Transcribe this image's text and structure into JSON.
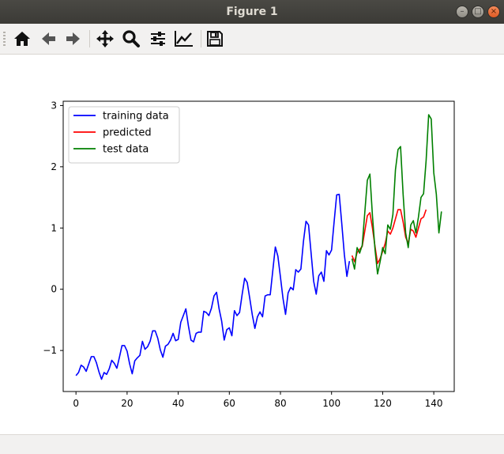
{
  "window": {
    "title": "Figure 1"
  },
  "toolbar": {
    "buttons": [
      {
        "name": "home-icon"
      },
      {
        "name": "back-icon"
      },
      {
        "name": "forward-icon"
      },
      {
        "name": "pan-icon"
      },
      {
        "name": "zoom-icon"
      },
      {
        "name": "subplots-icon"
      },
      {
        "name": "axes-edit-icon"
      },
      {
        "name": "save-icon"
      }
    ]
  },
  "chart_data": {
    "type": "line",
    "title": "",
    "xlabel": "",
    "ylabel": "",
    "xlim": [
      -5,
      148
    ],
    "ylim": [
      -1.67,
      3.07
    ],
    "xticks": [
      0,
      20,
      40,
      60,
      80,
      100,
      120,
      140
    ],
    "yticks": [
      -1,
      0,
      1,
      2,
      3
    ],
    "xtick_labels": [
      "0",
      "20",
      "40",
      "60",
      "80",
      "100",
      "120",
      "140"
    ],
    "ytick_labels": [
      "−1",
      "0",
      "1",
      "2",
      "3"
    ],
    "legend_position": "top-left",
    "series": [
      {
        "name": "training data",
        "color": "#0000ff",
        "x_start": 0,
        "values": [
          -1.41,
          -1.36,
          -1.24,
          -1.27,
          -1.34,
          -1.22,
          -1.1,
          -1.1,
          -1.2,
          -1.35,
          -1.47,
          -1.36,
          -1.39,
          -1.3,
          -1.16,
          -1.21,
          -1.29,
          -1.11,
          -0.92,
          -0.92,
          -1.01,
          -1.22,
          -1.38,
          -1.17,
          -1.12,
          -1.08,
          -0.85,
          -0.98,
          -0.94,
          -0.85,
          -0.68,
          -0.68,
          -0.8,
          -0.99,
          -1.11,
          -0.93,
          -0.9,
          -0.83,
          -0.72,
          -0.84,
          -0.82,
          -0.54,
          -0.43,
          -0.32,
          -0.6,
          -0.83,
          -0.86,
          -0.72,
          -0.7,
          -0.7,
          -0.36,
          -0.38,
          -0.43,
          -0.31,
          -0.11,
          -0.05,
          -0.32,
          -0.52,
          -0.83,
          -0.66,
          -0.63,
          -0.76,
          -0.35,
          -0.43,
          -0.38,
          -0.09,
          0.18,
          0.11,
          -0.15,
          -0.42,
          -0.64,
          -0.45,
          -0.37,
          -0.45,
          -0.11,
          -0.09,
          -0.09,
          0.3,
          0.69,
          0.54,
          0.2,
          -0.15,
          -0.41,
          -0.06,
          0.03,
          -0.01,
          0.32,
          0.28,
          0.33,
          0.78,
          1.11,
          1.05,
          0.59,
          0.13,
          -0.08,
          0.22,
          0.28,
          0.13,
          0.63,
          0.56,
          0.64,
          1.1,
          1.54,
          1.55,
          1.07,
          0.57,
          0.21,
          0.46
        ]
      },
      {
        "name": "predicted",
        "color": "#ff0000",
        "x_start": 108,
        "values": [
          0.55,
          0.45,
          0.6,
          0.65,
          0.7,
          0.95,
          1.2,
          1.25,
          1.0,
          0.7,
          0.42,
          0.5,
          0.62,
          0.75,
          0.95,
          0.9,
          1.0,
          1.15,
          1.3,
          1.3,
          1.1,
          0.85,
          0.75,
          0.98,
          0.95,
          0.85,
          1.0,
          1.15,
          1.18,
          1.3
        ]
      },
      {
        "name": "test data",
        "color": "#008000",
        "x_start": 108,
        "values": [
          0.5,
          0.33,
          0.68,
          0.59,
          0.72,
          1.25,
          1.78,
          1.88,
          1.2,
          0.65,
          0.25,
          0.45,
          0.68,
          0.58,
          1.05,
          0.98,
          1.22,
          1.95,
          2.28,
          2.33,
          1.55,
          0.92,
          0.68,
          1.05,
          1.12,
          0.92,
          1.18,
          1.5,
          1.56,
          2.1,
          2.85,
          2.78,
          1.9,
          1.55,
          0.92,
          1.27
        ]
      }
    ]
  }
}
